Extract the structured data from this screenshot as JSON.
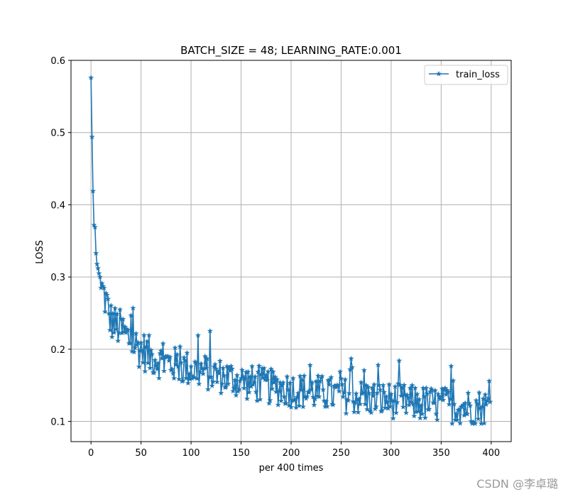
{
  "chart_data": {
    "type": "line",
    "title": "BATCH_SIZE = 48; LEARNING_RATE:0.001",
    "xlabel": "per 400 times",
    "ylabel": "LOSS",
    "xlim": [
      -20,
      420
    ],
    "ylim": [
      0.072,
      0.6
    ],
    "xticks": [
      0,
      50,
      100,
      150,
      200,
      250,
      300,
      350,
      400
    ],
    "yticks": [
      0.1,
      0.2,
      0.3,
      0.4,
      0.5,
      0.6
    ],
    "xtick_labels": [
      "0",
      "50",
      "100",
      "150",
      "200",
      "250",
      "300",
      "350",
      "400"
    ],
    "ytick_labels": [
      "0.1",
      "0.2",
      "0.3",
      "0.4",
      "0.5",
      "0.6"
    ],
    "grid": true,
    "legend_position": "upper right",
    "series": [
      {
        "name": "train_loss",
        "color": "#1f77b4",
        "marker": "star",
        "keypoints_x": [
          0,
          1,
          2,
          3,
          4,
          5,
          6,
          7,
          8,
          9,
          10,
          12,
          14,
          16,
          18,
          20,
          25,
          30,
          35,
          40,
          45,
          50,
          60,
          70,
          80,
          90,
          100,
          110,
          120,
          130,
          140,
          150,
          160,
          170,
          180,
          190,
          200,
          220,
          240,
          260,
          280,
          300,
          320,
          340,
          360,
          380,
          399
        ],
        "keypoints_y": [
          0.576,
          0.494,
          0.419,
          0.372,
          0.369,
          0.333,
          0.318,
          0.312,
          0.305,
          0.3,
          0.285,
          0.28,
          0.27,
          0.262,
          0.245,
          0.24,
          0.232,
          0.228,
          0.218,
          0.212,
          0.205,
          0.2,
          0.19,
          0.183,
          0.18,
          0.176,
          0.172,
          0.17,
          0.166,
          0.163,
          0.16,
          0.156,
          0.153,
          0.15,
          0.148,
          0.146,
          0.144,
          0.141,
          0.138,
          0.135,
          0.132,
          0.129,
          0.126,
          0.124,
          0.122,
          0.12,
          0.12
        ],
        "noise_amplitude": 0.025,
        "n_points": 400,
        "min_value": 0.097,
        "max_value": 0.576,
        "final_value": 0.127
      }
    ]
  },
  "legend": {
    "label": "train_loss"
  },
  "watermark": "CSDN @李卓璐"
}
